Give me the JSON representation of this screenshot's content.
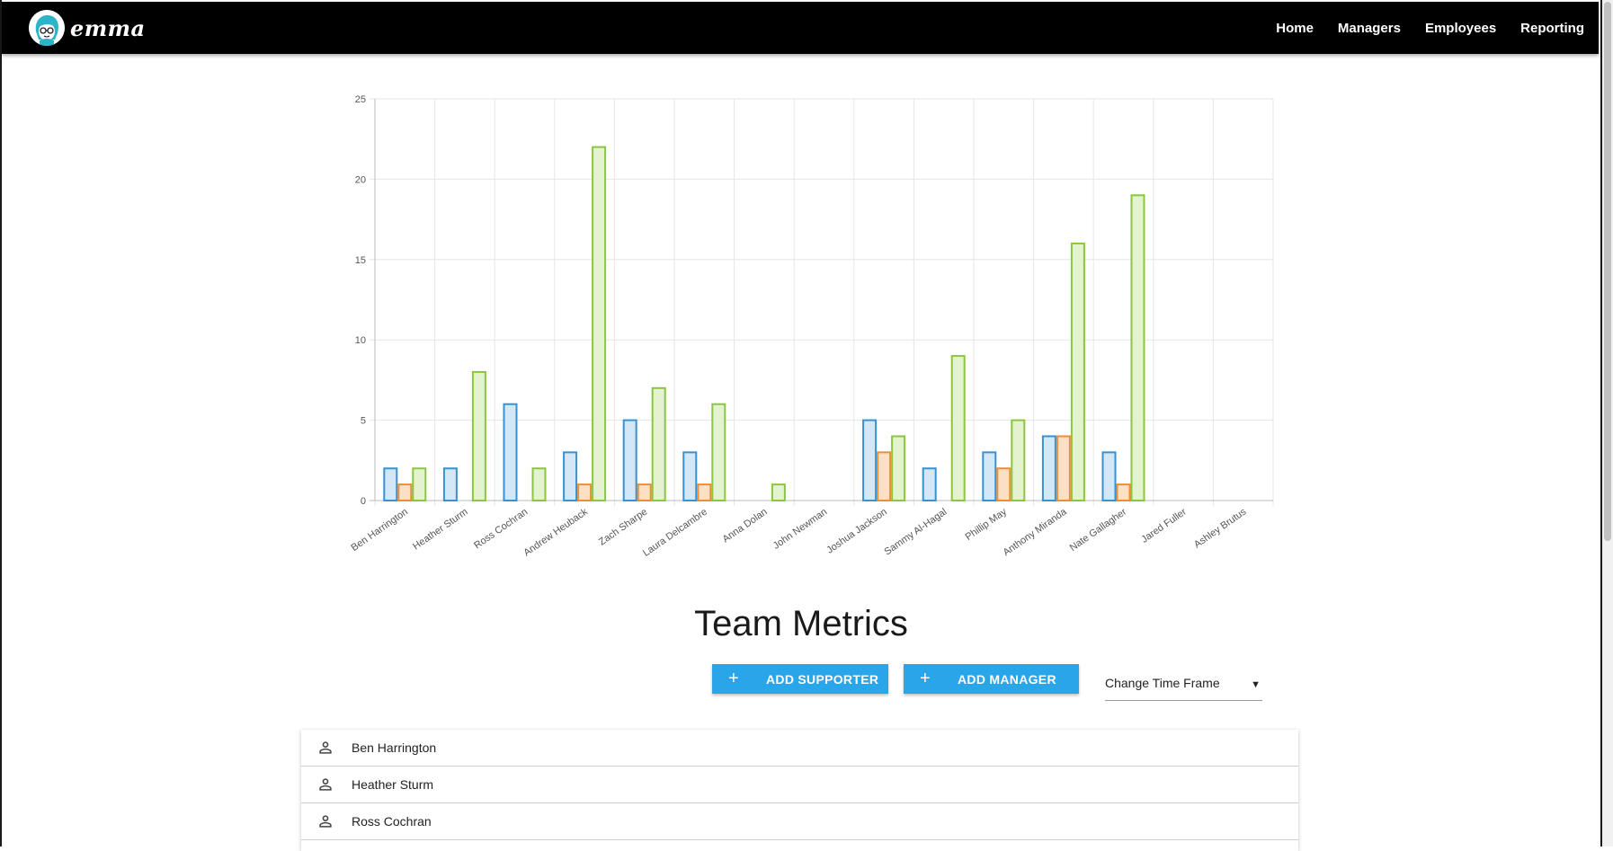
{
  "app": {
    "logo_text": "emma",
    "nav": [
      "Home",
      "Managers",
      "Employees",
      "Reporting"
    ]
  },
  "page": {
    "title": "Team Metrics",
    "add_supporter_label": "ADD SUPPORTER",
    "add_manager_label": "ADD MANAGER",
    "plus_glyph": "+",
    "time_frame_label": "Change Time Frame",
    "time_frame_arrow": "▼"
  },
  "members": [
    "Ben Harrington",
    "Heather Sturm",
    "Ross Cochran"
  ],
  "icons": {
    "logo": "emma-logo-icon",
    "member": "person-outline-icon",
    "dropdown": "dropdown-arrow-icon"
  },
  "colors": {
    "navbar": "#000000",
    "button": "#29a6ea",
    "series_blue": "#3a91cf",
    "series_blue_fill": "#d3e7f6",
    "series_orange": "#ec8e33",
    "series_orange_fill": "#fbe0c6",
    "series_green": "#8cc641",
    "series_green_fill": "#e3f2cf"
  },
  "chart_data": {
    "type": "bar",
    "categories": [
      "Ben Harrington",
      "Heather Sturm",
      "Ross Cochran",
      "Andrew Heuback",
      "Zach Sharpe",
      "Laura Delcambre",
      "Anna Dolan",
      "John Newman",
      "Joshua Jackson",
      "Sammy Al-Hagal",
      "Phillip May",
      "Anthony Miranda",
      "Nate Gallagher",
      "Jared Fuller",
      "Ashley Brutus"
    ],
    "series": [
      {
        "color": "#3a91cf",
        "fill": "#d3e7f6",
        "values": [
          2,
          2,
          6,
          3,
          5,
          3,
          0,
          0,
          5,
          2,
          3,
          4,
          3,
          0,
          0
        ]
      },
      {
        "color": "#ec8e33",
        "fill": "#fbe0c6",
        "values": [
          1,
          0,
          0,
          1,
          1,
          1,
          0,
          0,
          3,
          0,
          2,
          4,
          1,
          0,
          0
        ]
      },
      {
        "color": "#8cc641",
        "fill": "#e3f2cf",
        "values": [
          2,
          8,
          2,
          22,
          7,
          6,
          1,
          0,
          4,
          9,
          5,
          16,
          19,
          0,
          0
        ]
      }
    ],
    "ylim": [
      0,
      25
    ],
    "yticks": [
      0,
      5,
      10,
      15,
      20,
      25
    ],
    "grid": true,
    "legend": "none"
  }
}
